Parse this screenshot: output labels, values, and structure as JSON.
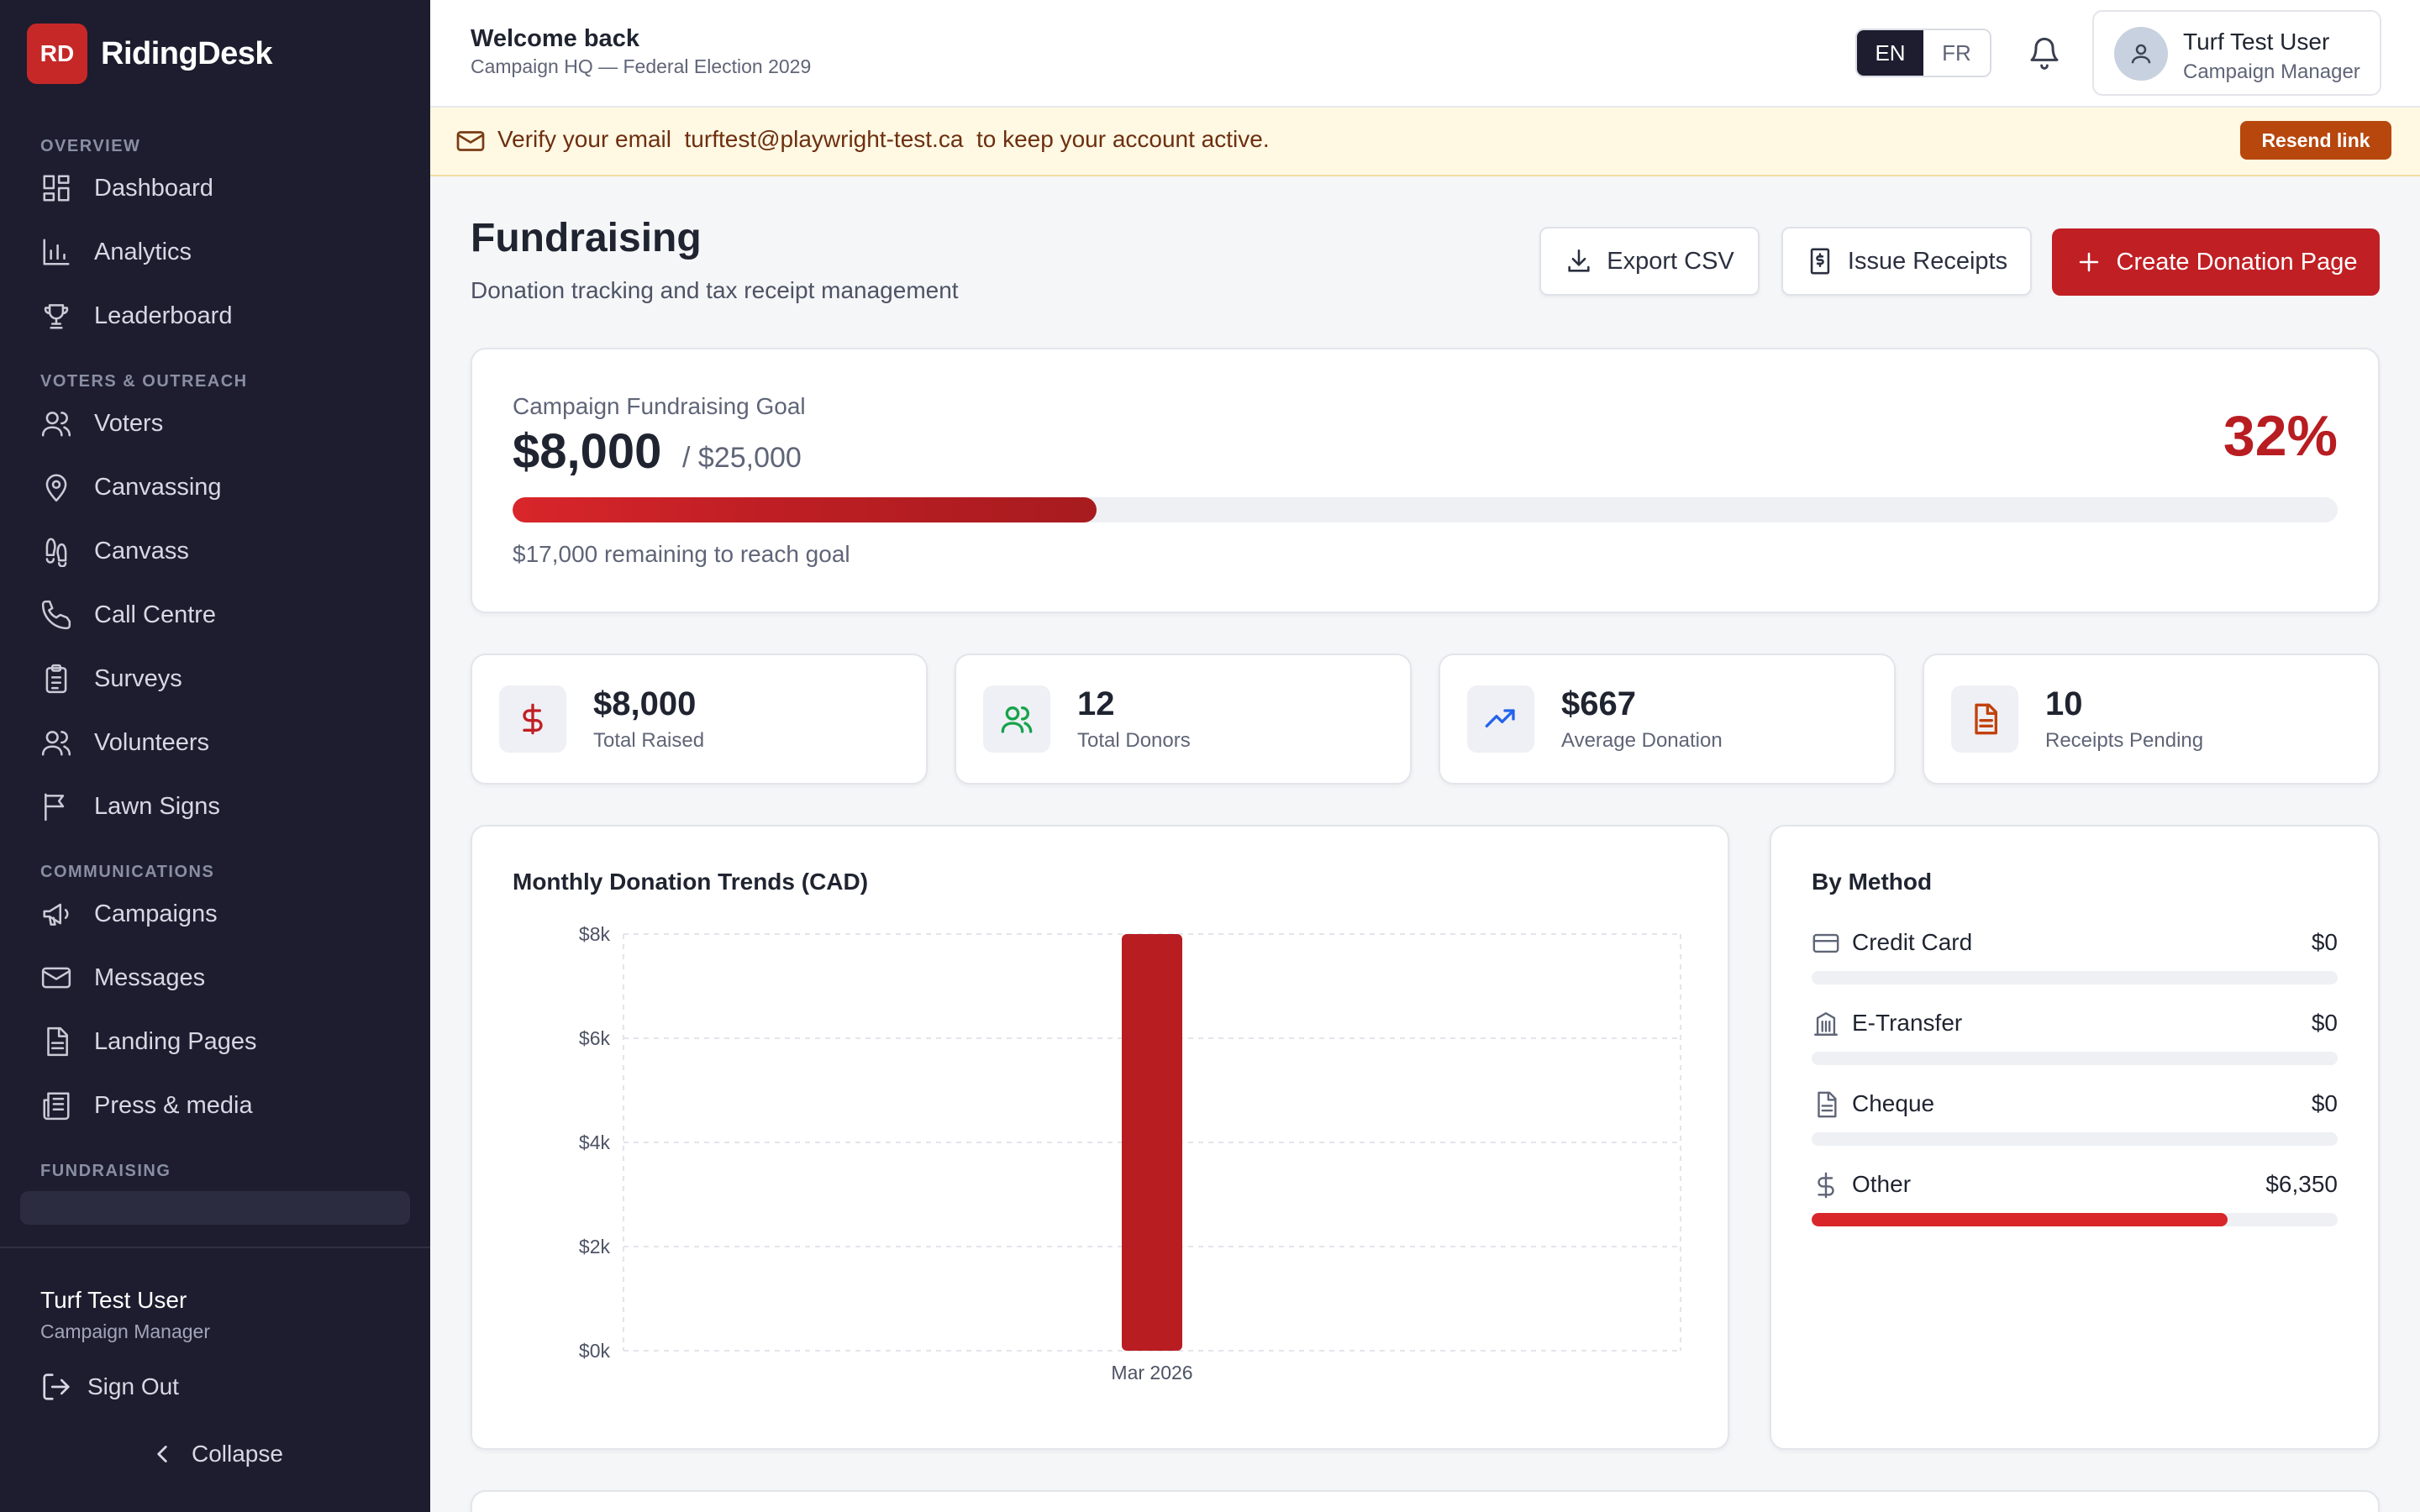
{
  "sidebar": {
    "brand": {
      "logo": "RD",
      "name": "RidingDesk"
    },
    "sections": [
      {
        "title": "OVERVIEW",
        "items": [
          {
            "label": "Dashboard",
            "icon": "dashboard-icon"
          },
          {
            "label": "Analytics",
            "icon": "bar-chart-icon"
          },
          {
            "label": "Leaderboard",
            "icon": "trophy-icon"
          }
        ]
      },
      {
        "title": "VOTERS & OUTREACH",
        "items": [
          {
            "label": "Voters",
            "icon": "users-icon"
          },
          {
            "label": "Canvassing",
            "icon": "map-pin-icon"
          },
          {
            "label": "Canvass",
            "icon": "footprints-icon"
          },
          {
            "label": "Call Centre",
            "icon": "phone-icon"
          },
          {
            "label": "Surveys",
            "icon": "clipboard-icon"
          },
          {
            "label": "Volunteers",
            "icon": "users-icon"
          },
          {
            "label": "Lawn Signs",
            "icon": "flag-icon"
          }
        ]
      },
      {
        "title": "COMMUNICATIONS",
        "items": [
          {
            "label": "Campaigns",
            "icon": "megaphone-icon"
          },
          {
            "label": "Messages",
            "icon": "mail-icon"
          },
          {
            "label": "Landing Pages",
            "icon": "file-icon"
          },
          {
            "label": "Press & media",
            "icon": "newspaper-icon"
          }
        ]
      },
      {
        "title": "FUNDRAISING",
        "items": []
      }
    ],
    "footer": {
      "user_name": "Turf Test User",
      "user_role": "Campaign Manager",
      "sign_out": "Sign Out",
      "collapse": "Collapse"
    }
  },
  "header": {
    "welcome": "Welcome back",
    "subtitle": "Campaign HQ — Federal Election 2029",
    "lang_en": "EN",
    "lang_fr": "FR",
    "selected_lang": "EN",
    "user_name": "Turf Test User",
    "user_role": "Campaign Manager"
  },
  "banner": {
    "text": "Verify your email  turftest@playwright-test.ca  to keep your account active.",
    "button": "Resend link"
  },
  "page": {
    "title": "Fundraising",
    "subtitle": "Donation tracking and tax receipt management",
    "export_label": "Export CSV",
    "receipts_label": "Issue Receipts",
    "create_label": "Create Donation Page"
  },
  "goal": {
    "label": "Campaign Fundraising Goal",
    "raised": "$8,000",
    "target": "/ $25,000",
    "percent_label": "32%",
    "progress": 0.32,
    "remaining": "$17,000 remaining to reach goal"
  },
  "stats": [
    {
      "value": "$8,000",
      "label": "Total Raised",
      "icon": "dollar-icon",
      "color": "#c01f24"
    },
    {
      "value": "12",
      "label": "Total Donors",
      "icon": "users-icon",
      "color": "#16a34a"
    },
    {
      "value": "$667",
      "label": "Average Donation",
      "icon": "trending-up-icon",
      "color": "#2563eb"
    },
    {
      "value": "10",
      "label": "Receipts Pending",
      "icon": "file-text-icon",
      "color": "#c2410c"
    }
  ],
  "trend": {
    "title": "Monthly Donation Trends (CAD)"
  },
  "chart_data": {
    "type": "bar",
    "title": "Monthly Donation Trends (CAD)",
    "categories": [
      "Mar 2026"
    ],
    "values": [
      8000
    ],
    "y_ticks": [
      "$0k",
      "$2k",
      "$4k",
      "$6k",
      "$8k"
    ],
    "ylim": [
      0,
      8000
    ],
    "grid": true,
    "bar_color": "#b81d22"
  },
  "methods": {
    "title": "By Method",
    "items": [
      {
        "name": "Credit Card",
        "value": "$0",
        "icon": "credit-card-icon",
        "share": 0
      },
      {
        "name": "E-Transfer",
        "value": "$0",
        "icon": "bank-icon",
        "share": 0
      },
      {
        "name": "Cheque",
        "value": "$0",
        "icon": "file-text-icon",
        "share": 0
      },
      {
        "name": "Other",
        "value": "$6,350",
        "icon": "dollar-icon",
        "share": 0.79
      }
    ]
  },
  "colors": {
    "sidebar_bg": "#1d1d2f",
    "accent": "#c01f24",
    "banner_bg": "#fff8e3",
    "banner_button": "#b7470d"
  }
}
